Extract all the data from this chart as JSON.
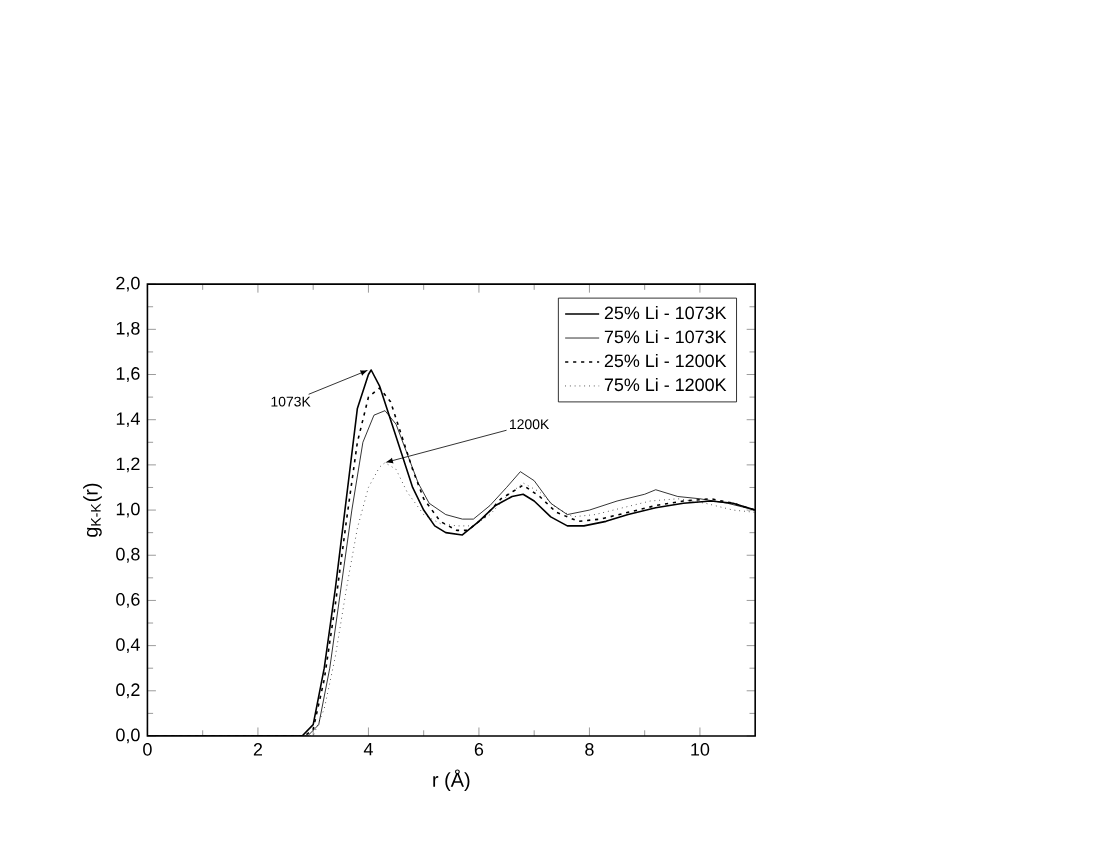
{
  "chart_data": {
    "type": "line",
    "xlabel": "r (Å)",
    "ylabel": "g$_{K-K}$(r)",
    "xlim": [
      0,
      11
    ],
    "ylim": [
      0,
      2
    ],
    "xticks": [
      0,
      2,
      4,
      6,
      8,
      10
    ],
    "yticks": [
      {
        "value": 0,
        "label": "0,0"
      },
      {
        "value": 0.2,
        "label": "0,2"
      },
      {
        "value": 0.4,
        "label": "0,4"
      },
      {
        "value": 0.6,
        "label": "0,6"
      },
      {
        "value": 0.8,
        "label": "0,8"
      },
      {
        "value": 1.0,
        "label": "1,0"
      },
      {
        "value": 1.2,
        "label": "1,2"
      },
      {
        "value": 1.4,
        "label": "1,4"
      },
      {
        "value": 1.6,
        "label": "1,6"
      },
      {
        "value": 1.8,
        "label": "1,8"
      },
      {
        "value": 2.0,
        "label": "2,0"
      }
    ],
    "legend": "top right",
    "grid": false,
    "series": [
      {
        "name": "25% Li - 1073K",
        "color": "#000000",
        "line_style": "solid",
        "x": [
          0,
          2.8,
          3.0,
          3.2,
          3.4,
          3.6,
          3.8,
          4.0,
          4.05,
          4.2,
          4.4,
          4.6,
          4.8,
          5.0,
          5.2,
          5.4,
          5.7,
          6.0,
          6.3,
          6.6,
          6.8,
          7.0,
          7.3,
          7.6,
          7.9,
          8.3,
          8.7,
          9.2,
          9.7,
          10.2,
          10.6,
          11.0
        ],
        "values": [
          0,
          0,
          0.05,
          0.3,
          0.65,
          1.05,
          1.45,
          1.6,
          1.62,
          1.55,
          1.4,
          1.25,
          1.1,
          1.0,
          0.93,
          0.9,
          0.89,
          0.95,
          1.02,
          1.06,
          1.07,
          1.04,
          0.97,
          0.93,
          0.93,
          0.95,
          0.98,
          1.01,
          1.03,
          1.04,
          1.03,
          1.0
        ]
      },
      {
        "name": "75% Li - 1073K",
        "color": "#000000",
        "line_style": "solid",
        "x": [
          0,
          2.9,
          3.1,
          3.3,
          3.5,
          3.7,
          3.9,
          4.1,
          4.3,
          4.5,
          4.7,
          4.9,
          5.1,
          5.4,
          5.7,
          5.9,
          6.2,
          6.5,
          6.75,
          7.0,
          7.3,
          7.6,
          8.0,
          8.5,
          9.0,
          9.2,
          9.6,
          10.0,
          10.5,
          11.0
        ],
        "values": [
          0,
          0,
          0.05,
          0.3,
          0.65,
          1.0,
          1.3,
          1.42,
          1.44,
          1.38,
          1.25,
          1.12,
          1.03,
          0.98,
          0.96,
          0.96,
          1.02,
          1.1,
          1.17,
          1.13,
          1.03,
          0.98,
          1.0,
          1.04,
          1.07,
          1.09,
          1.06,
          1.05,
          1.03,
          1.0
        ]
      },
      {
        "name": "25% Li - 1200K",
        "color": "#000000",
        "line_style": "dotted",
        "x": [
          0,
          2.85,
          3.0,
          3.2,
          3.4,
          3.6,
          3.8,
          4.0,
          4.2,
          4.4,
          4.6,
          4.8,
          5.0,
          5.3,
          5.6,
          5.8,
          6.1,
          6.4,
          6.8,
          7.1,
          7.4,
          7.8,
          8.2,
          8.7,
          9.2,
          9.7,
          10.2,
          10.6,
          11.0
        ],
        "values": [
          0,
          0,
          0.03,
          0.25,
          0.58,
          0.95,
          1.3,
          1.5,
          1.54,
          1.48,
          1.33,
          1.18,
          1.05,
          0.95,
          0.91,
          0.91,
          0.97,
          1.05,
          1.11,
          1.06,
          0.99,
          0.95,
          0.96,
          0.99,
          1.02,
          1.04,
          1.05,
          1.03,
          1.0
        ]
      },
      {
        "name": "75% Li - 1200K",
        "color": "#000000",
        "line_style": "dotted",
        "x": [
          0,
          3.0,
          3.2,
          3.4,
          3.6,
          3.8,
          4.0,
          4.2,
          4.3,
          4.5,
          4.7,
          5.0,
          5.3,
          5.6,
          5.9,
          6.2,
          6.5,
          6.8,
          7.1,
          7.4,
          7.7,
          8.1,
          8.6,
          9.1,
          9.6,
          10.1,
          10.6,
          11.0
        ],
        "values": [
          0,
          0,
          0.12,
          0.35,
          0.65,
          0.92,
          1.1,
          1.19,
          1.21,
          1.18,
          1.08,
          0.98,
          0.94,
          0.93,
          0.93,
          0.98,
          1.06,
          1.12,
          1.08,
          1.01,
          0.97,
          0.98,
          1.01,
          1.04,
          1.05,
          1.03,
          1.0,
          0.99
        ]
      }
    ],
    "annotations": [
      {
        "text": "1073K",
        "x": 4.0,
        "y": 1.62
      },
      {
        "text": "1200K",
        "x": 4.3,
        "y": 1.21
      }
    ]
  }
}
